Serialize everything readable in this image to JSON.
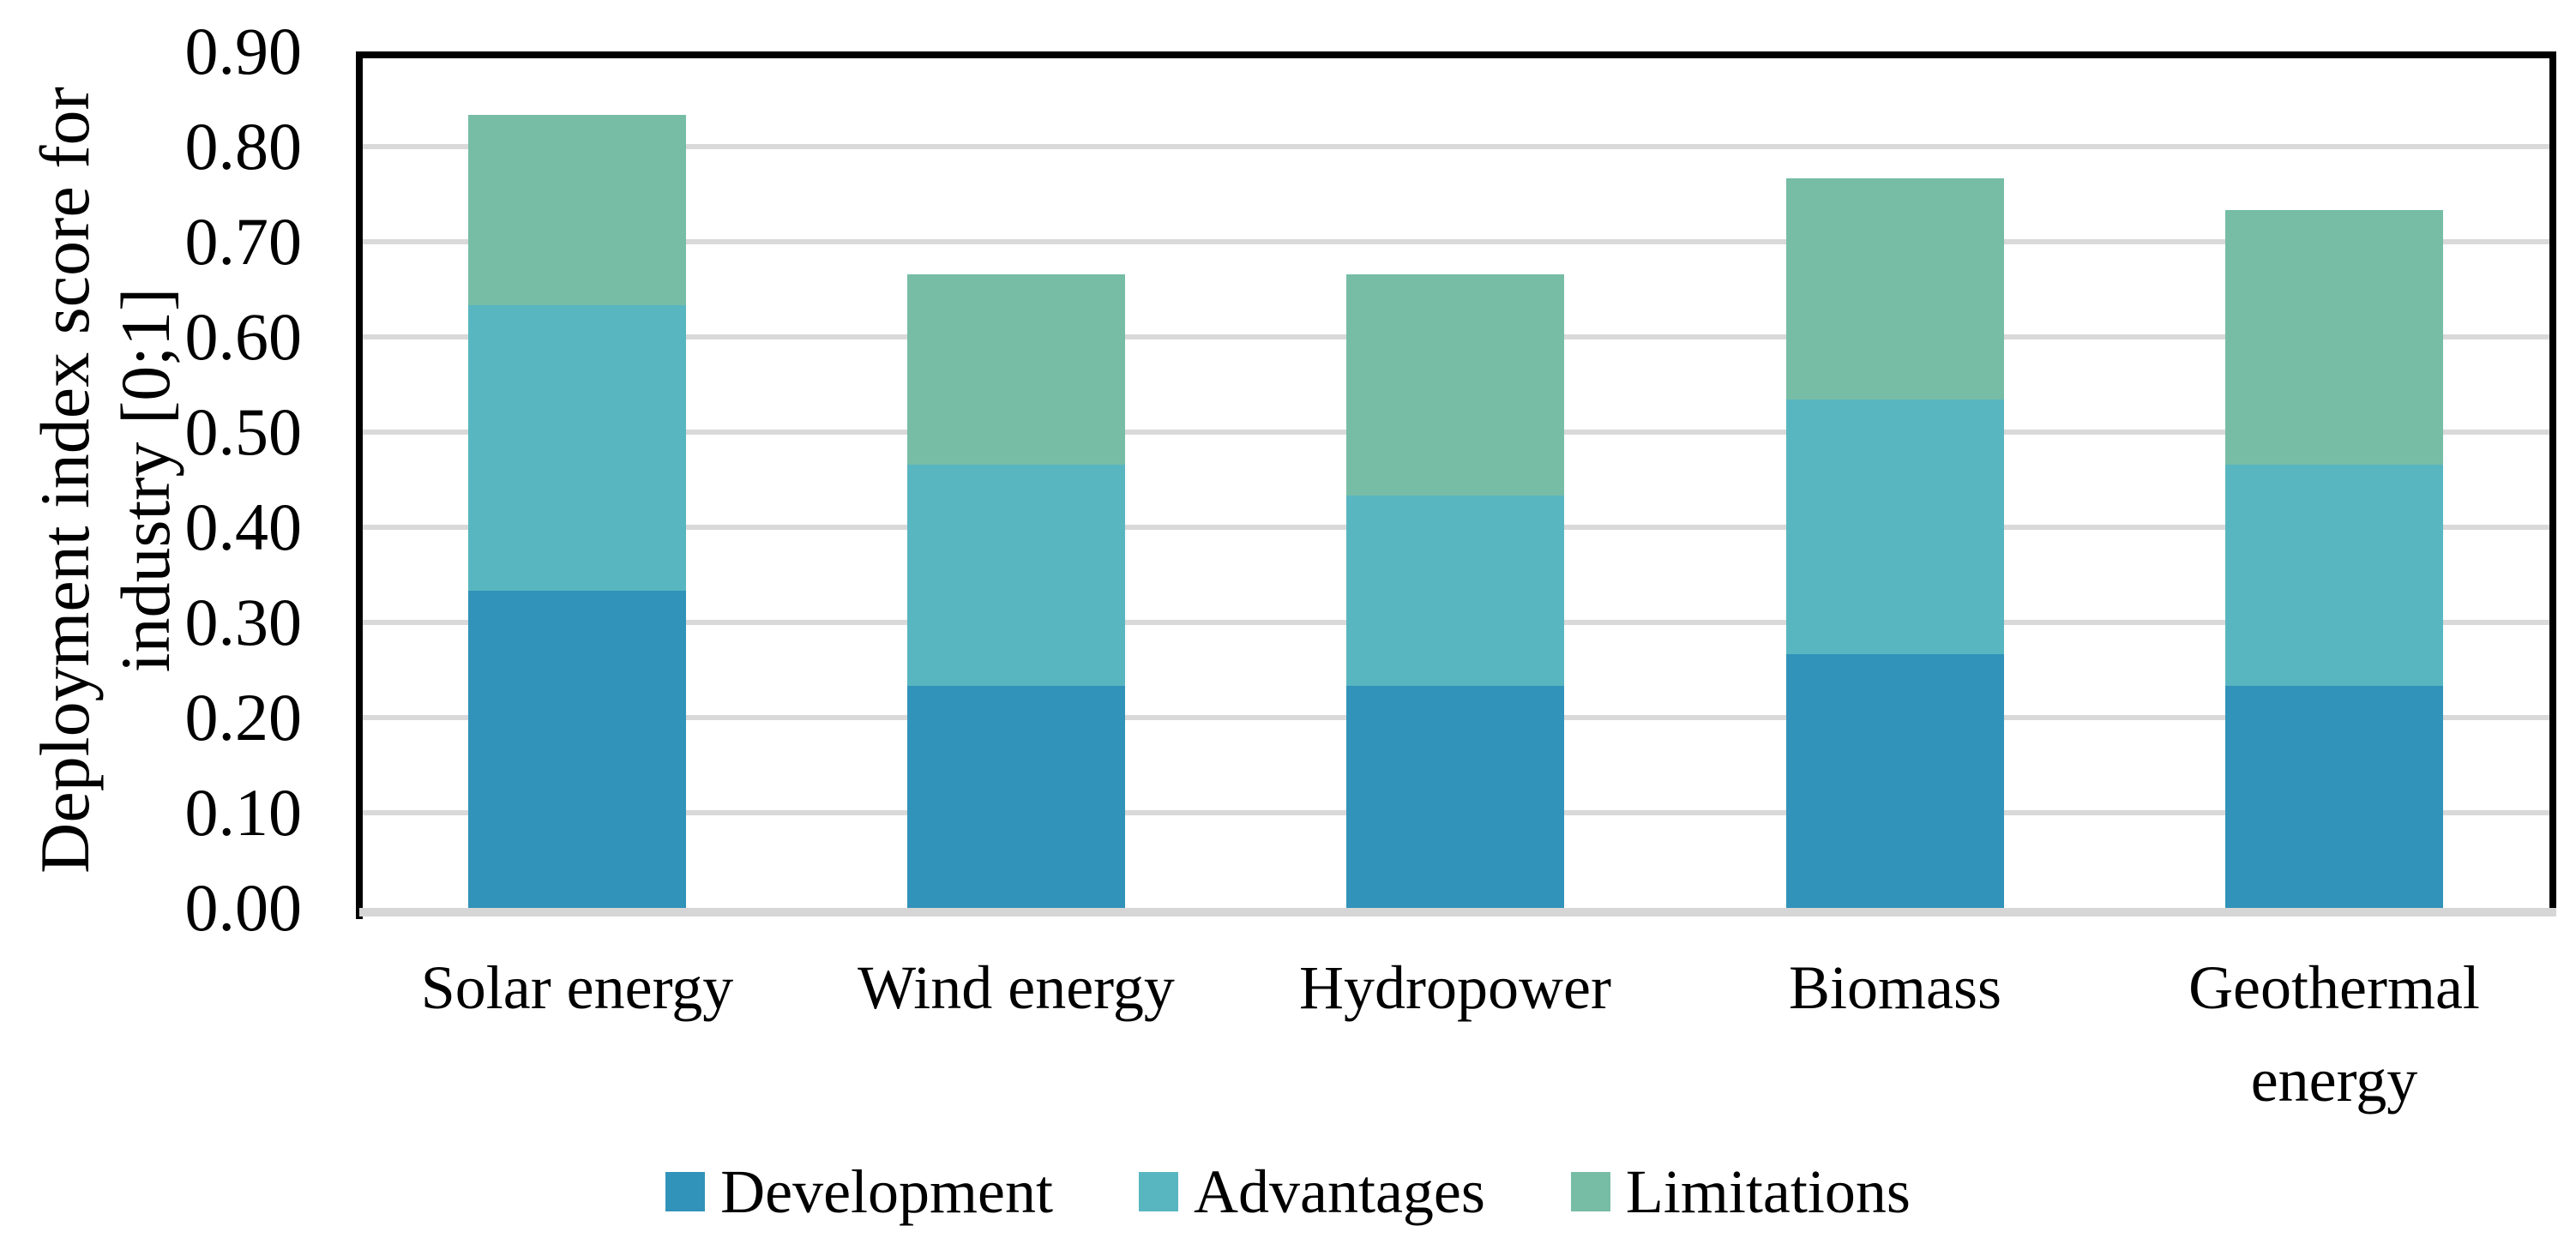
{
  "chart_data": {
    "type": "bar",
    "stacked": true,
    "title": "",
    "xlabel": "",
    "ylabel": "Deployment index score for industry [0;1]",
    "ylabel_lines": [
      "Deployment index score for",
      "industry [0;1]"
    ],
    "categories": [
      "Solar energy",
      "Wind energy",
      "Hydropower",
      "Biomass",
      "Geothermal energy"
    ],
    "series": [
      {
        "name": "Development",
        "color": "#3193B9",
        "values": [
          0.333,
          0.233,
          0.233,
          0.267,
          0.233
        ]
      },
      {
        "name": "Advantages",
        "color": "#58B6C1",
        "values": [
          0.3,
          0.233,
          0.2,
          0.267,
          0.233
        ]
      },
      {
        "name": "Limitations",
        "color": "#77BDA6",
        "values": [
          0.2,
          0.2,
          0.233,
          0.233,
          0.267
        ]
      }
    ],
    "stack_totals": [
      0.833,
      0.667,
      0.667,
      0.767,
      0.733
    ],
    "ylim": [
      0.0,
      0.9
    ],
    "ytick_step": 0.1,
    "yticks": [
      "0.90",
      "0.80",
      "0.70",
      "0.60",
      "0.50",
      "0.40",
      "0.30",
      "0.20",
      "0.10",
      "0.00"
    ],
    "grid": "horizontal",
    "gridline_color": "#D9D9D9",
    "axis_color": "#000000",
    "baseline_color": "#D6D6D6",
    "legend_position": "bottom"
  }
}
